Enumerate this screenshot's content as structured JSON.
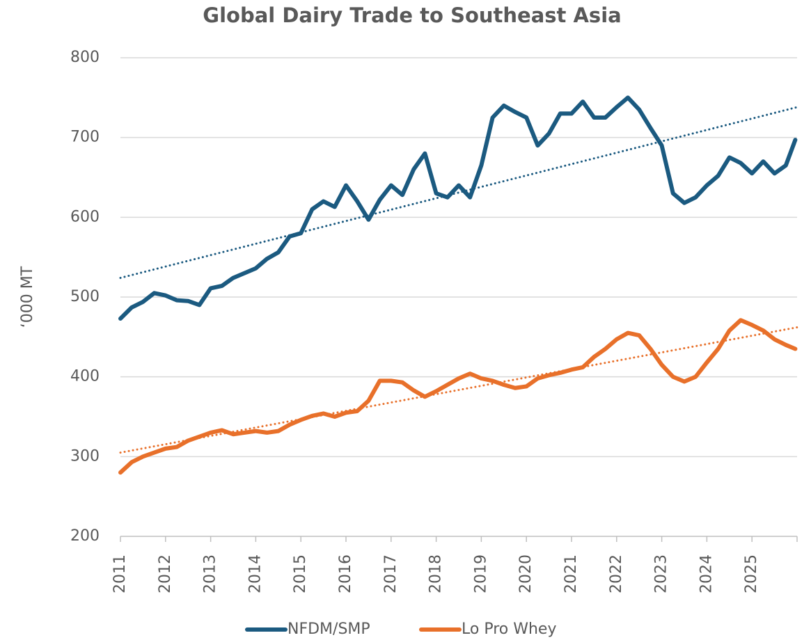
{
  "chart_data": {
    "type": "line",
    "title": "Global Dairy Trade to Southeast Asia",
    "ylabel": "‘000 MT",
    "xlim": [
      2011,
      2026
    ],
    "xticks": [
      2011,
      2012,
      2013,
      2014,
      2015,
      2016,
      2017,
      2018,
      2019,
      2020,
      2021,
      2022,
      2023,
      2024,
      2025
    ],
    "ylim": [
      200,
      800
    ],
    "yticks": [
      200,
      300,
      400,
      500,
      600,
      700,
      800
    ],
    "grid": true,
    "legend": "bottom",
    "x": [
      2011,
      2011.25,
      2011.5,
      2011.75,
      2012,
      2012.25,
      2012.5,
      2012.75,
      2013,
      2013.25,
      2013.5,
      2013.75,
      2014,
      2014.25,
      2014.5,
      2014.75,
      2015,
      2015.25,
      2015.5,
      2015.75,
      2016,
      2016.25,
      2016.5,
      2016.75,
      2017,
      2017.25,
      2017.5,
      2017.75,
      2018,
      2018.25,
      2018.5,
      2018.75,
      2019,
      2019.25,
      2019.5,
      2019.75,
      2020,
      2020.25,
      2020.5,
      2020.75,
      2021,
      2021.25,
      2021.5,
      2021.75,
      2022,
      2022.25,
      2022.5,
      2022.75,
      2023,
      2023.25,
      2023.5,
      2023.75,
      2024,
      2024.25,
      2024.5,
      2024.75,
      2025,
      2025.25,
      2025.5,
      2025.75,
      2025.96
    ],
    "series": [
      {
        "name": "NFDM/SMP",
        "color": "#1b5a80",
        "values": [
          473,
          487,
          494,
          505,
          502,
          496,
          495,
          490,
          511,
          514,
          524,
          530,
          536,
          548,
          556,
          576,
          580,
          610,
          620,
          613,
          640,
          620,
          597,
          622,
          640,
          628,
          660,
          680,
          630,
          625,
          640,
          625,
          665,
          725,
          740,
          732,
          725,
          690,
          705,
          730,
          730,
          745,
          725,
          725,
          738,
          750,
          735,
          712,
          690,
          630,
          618,
          625,
          640,
          652,
          675,
          668,
          655,
          670,
          655,
          665,
          697
        ],
        "trend": {
          "x": [
            2011,
            2026
          ],
          "values": [
            524,
            738
          ]
        }
      },
      {
        "name": "Lo Pro Whey",
        "color": "#e8702a",
        "values": [
          280,
          293,
          300,
          305,
          310,
          312,
          320,
          325,
          330,
          333,
          328,
          330,
          332,
          330,
          332,
          340,
          346,
          351,
          354,
          350,
          355,
          357,
          370,
          395,
          395,
          393,
          383,
          375,
          382,
          390,
          398,
          404,
          398,
          395,
          390,
          386,
          388,
          398,
          402,
          405,
          409,
          412,
          425,
          435,
          447,
          455,
          452,
          435,
          415,
          400,
          394,
          400,
          418,
          435,
          458,
          471,
          465,
          458,
          447,
          440,
          435
        ],
        "trend": {
          "x": [
            2011,
            2026
          ],
          "values": [
            305,
            462
          ]
        }
      }
    ]
  }
}
